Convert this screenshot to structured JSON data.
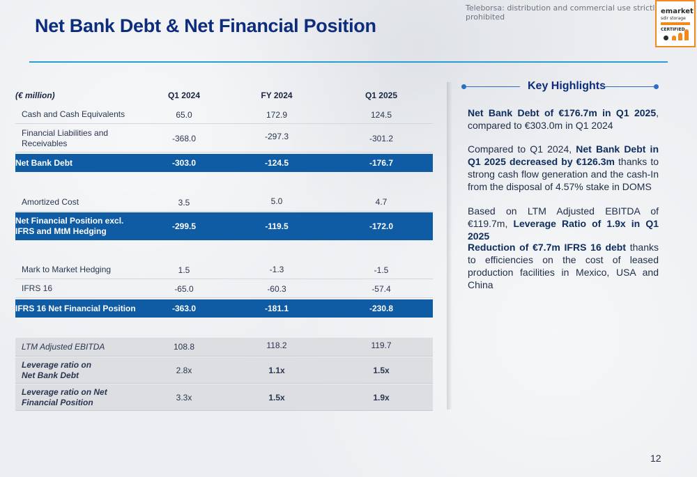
{
  "watermark": "Teleborsa: distribution and commercial use strictly prohibited",
  "logo": {
    "line1": "emarket",
    "line2": "sdir storage",
    "line3": "CERTIFIED",
    "accent": "#f08a1c"
  },
  "title": "Net Bank Debt & Net Financial Position",
  "table": {
    "header": {
      "label": "(€ million)",
      "c1": "Q1 2024",
      "c2": "FY 2024",
      "c3": "Q1 2025"
    },
    "rows": [
      {
        "label": "Cash and Cash Equivalents",
        "c1": "65.0",
        "c2": "172.9",
        "c3": "124.5"
      },
      {
        "label": "Financial Liabilities and Receivables",
        "c1": "-368.0",
        "c2": "-297.3",
        "c3": "-301.2"
      },
      {
        "label": "Net Bank Debt",
        "c1": "-303.0",
        "c2": "-124.5",
        "c3": "-176.7"
      },
      {
        "label": "Amortized Cost",
        "c1": "3.5",
        "c2": "5.0",
        "c3": "4.7"
      },
      {
        "label": "Net Financial Position excl. IFRS and MtM Hedging",
        "c1": "-299.5",
        "c2": "-119.5",
        "c3": "-172.0"
      },
      {
        "label": "Mark to Market Hedging",
        "c1": "1.5",
        "c2": "-1.3",
        "c3": "-1.5"
      },
      {
        "label": "IFRS 16",
        "c1": "-65.0",
        "c2": "-60.3",
        "c3": "-57.4"
      },
      {
        "label": "IFRS 16 Net Financial Position",
        "c1": "-363.0",
        "c2": "-181.1",
        "c3": "-230.8"
      },
      {
        "label": "LTM Adjusted EBITDA",
        "c1": "108.8",
        "c2": "118.2",
        "c3": "119.7"
      },
      {
        "label": "Leverage ratio on Net Bank Debt",
        "c1": "2.8x",
        "c2": "1.1x",
        "c3": "1.5x"
      },
      {
        "label": "Leverage ratio on Net Financial Position",
        "c1": "3.3x",
        "c2": "1.5x",
        "c3": "1.9x"
      }
    ]
  },
  "highlights": {
    "title": "Key Highlights",
    "p1": {
      "b": "Net Bank Debt of €176.7m in Q1 2025",
      "t": ", compared to €303.0m in Q1 2024"
    },
    "p2": {
      "t1": "Compared to Q1 2024, ",
      "b": "Net Bank Debt in Q1 2025 decreased by €126.3m",
      "t2": " thanks to strong cash flow generation and the cash-In from the disposal of 4.57% stake in DOMS"
    },
    "p3": {
      "t": "Based on LTM Adjusted EBITDA of €119.7m, ",
      "b": "Leverage Ratio of 1.9x in Q1 2025"
    },
    "p4": {
      "b": "Reduction of €7.7m IFRS 16 debt",
      "t": " thanks to efficiencies on the cost of leased production facilities in Mexico, USA and China"
    }
  },
  "page_number": "12",
  "colors": {
    "title": "#0d2d7c",
    "table_blue": "#0f5ba4",
    "rule": "#2a9bd6"
  }
}
